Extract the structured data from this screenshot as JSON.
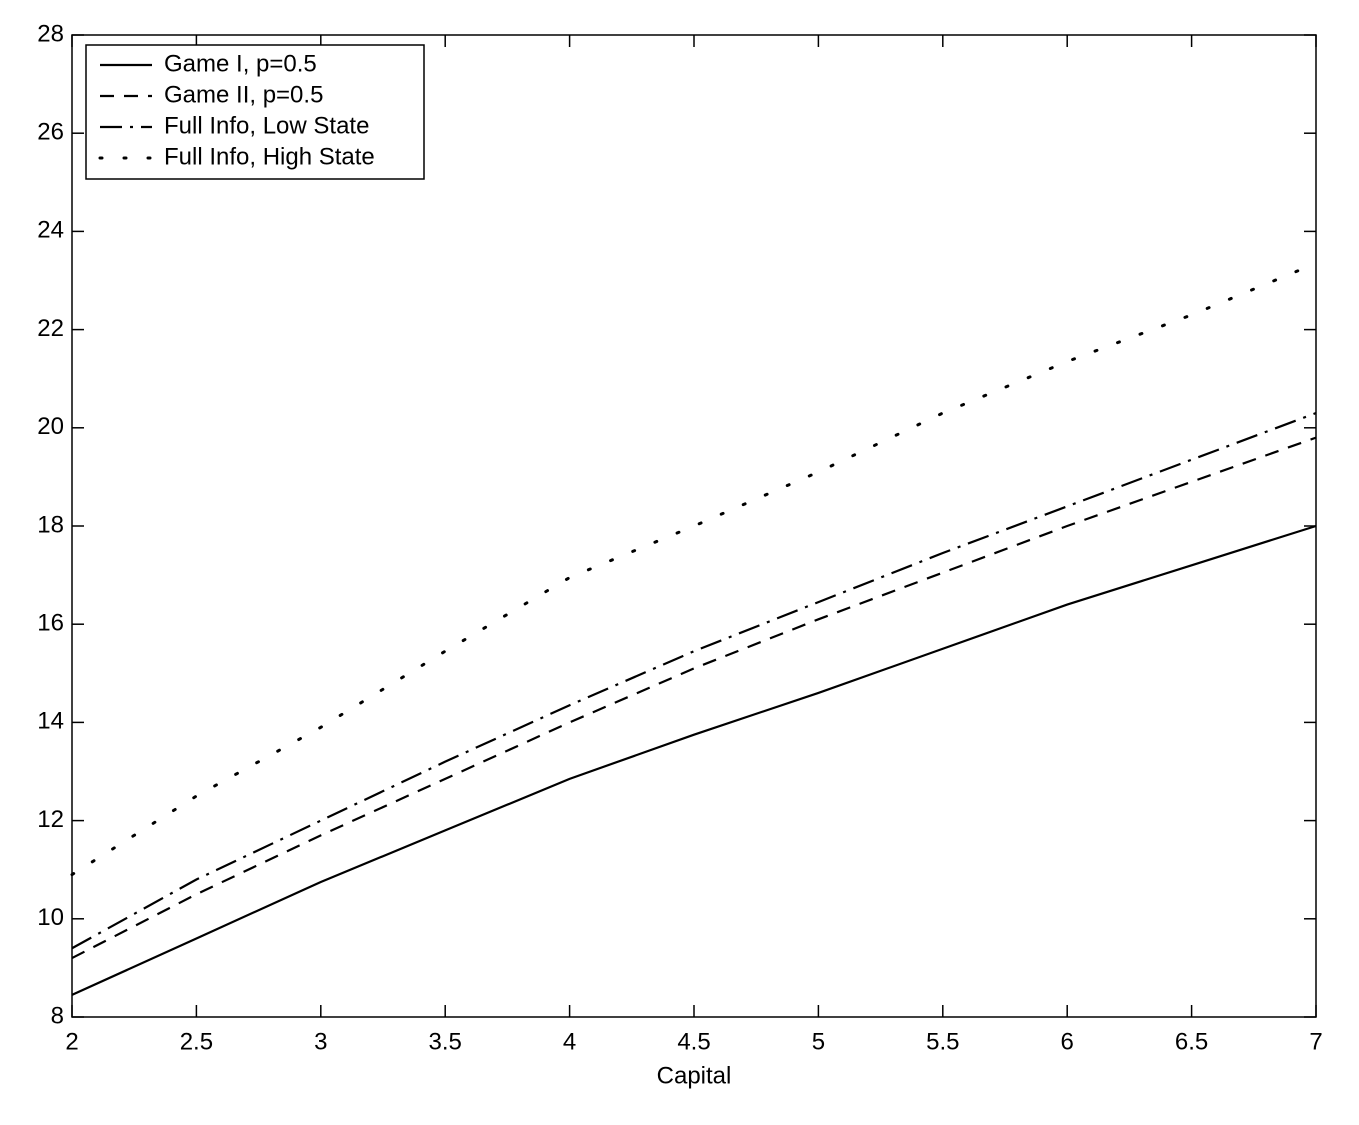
{
  "chart_data": {
    "type": "line",
    "xlabel": "Capital",
    "x": [
      2,
      2.5,
      3,
      3.5,
      4,
      4.5,
      5,
      5.5,
      6,
      6.5,
      7
    ],
    "series": [
      {
        "name": "Game I, p=0.5",
        "color": "#000000",
        "line_style": "solid",
        "values": [
          8.45,
          9.6,
          10.75,
          11.8,
          12.85,
          13.75,
          14.6,
          15.5,
          16.4,
          17.2,
          18.0
        ]
      },
      {
        "name": "Game II, p=0.5",
        "color": "#000000",
        "line_style": "dashed",
        "values": [
          9.2,
          10.5,
          11.7,
          12.85,
          14.0,
          15.1,
          16.1,
          17.05,
          18.0,
          18.9,
          19.8
        ]
      },
      {
        "name": "Full Info, Low State",
        "color": "#000000",
        "line_style": "dashdot",
        "values": [
          9.4,
          10.8,
          12.0,
          13.2,
          14.35,
          15.45,
          16.45,
          17.45,
          18.4,
          19.35,
          20.3
        ]
      },
      {
        "name": "Full Info, High State",
        "color": "#000000",
        "line_style": "dotted",
        "values": [
          10.9,
          12.5,
          13.9,
          15.45,
          16.95,
          18.0,
          19.1,
          20.3,
          21.35,
          22.3,
          23.35
        ]
      }
    ],
    "xlim": [
      2,
      7
    ],
    "xticks": [
      2,
      2.5,
      3,
      3.5,
      4,
      4.5,
      5,
      5.5,
      6,
      6.5,
      7
    ],
    "ylim": [
      8,
      28
    ],
    "yticks": [
      8,
      10,
      12,
      14,
      16,
      18,
      20,
      22,
      24,
      26,
      28
    ],
    "grid": false,
    "legend": "upper left"
  }
}
